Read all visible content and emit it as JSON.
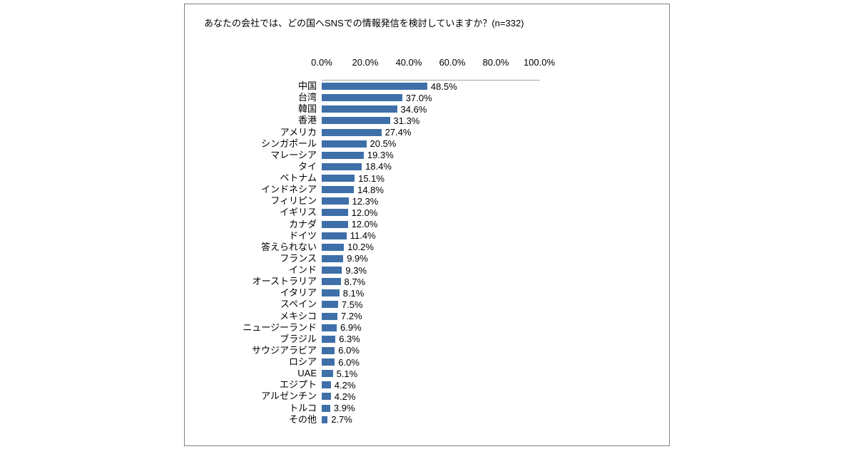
{
  "chart_data": {
    "type": "bar",
    "orientation": "horizontal",
    "title": "あなたの会社では、どの国へSNSでの情報発信を検討していますか？(n=332)",
    "x_axis": {
      "ticks": [
        "0.0%",
        "20.0%",
        "40.0%",
        "60.0%",
        "80.0%",
        "100.0%"
      ],
      "min": 0,
      "max": 100
    },
    "grid": "off",
    "legend": "none",
    "bar_color": "#3e6fa8",
    "axis_line_color": "#a6a6a6",
    "card_border_color": "#808080",
    "categories": [
      "中国",
      "台湾",
      "韓国",
      "香港",
      "アメリカ",
      "シンガポール",
      "マレーシア",
      "タイ",
      "ベトナム",
      "インドネシア",
      "フィリピン",
      "イギリス",
      "カナダ",
      "ドイツ",
      "答えられない",
      "フランス",
      "インド",
      "オーストラリア",
      "イタリア",
      "スペイン",
      "メキシコ",
      "ニュージーランド",
      "ブラジル",
      "サウジアラビア",
      "ロシア",
      "UAE",
      "エジプト",
      "アルゼンチン",
      "トルコ",
      "その他"
    ],
    "values": [
      48.5,
      37.0,
      34.6,
      31.3,
      27.4,
      20.5,
      19.3,
      18.4,
      15.1,
      14.8,
      12.3,
      12.0,
      12.0,
      11.4,
      10.2,
      9.9,
      9.3,
      8.7,
      8.1,
      7.5,
      7.2,
      6.9,
      6.3,
      6.0,
      6.0,
      5.1,
      4.2,
      4.2,
      3.9,
      2.7
    ],
    "value_labels": [
      "48.5%",
      "37.0%",
      "34.6%",
      "31.3%",
      "27.4%",
      "20.5%",
      "19.3%",
      "18.4%",
      "15.1%",
      "14.8%",
      "12.3%",
      "12.0%",
      "12.0%",
      "11.4%",
      "10.2%",
      "9.9%",
      "9.3%",
      "8.7%",
      "8.1%",
      "7.5%",
      "7.2%",
      "6.9%",
      "6.3%",
      "6.0%",
      "6.0%",
      "5.1%",
      "4.2%",
      "4.2%",
      "3.9%",
      "2.7%"
    ]
  }
}
